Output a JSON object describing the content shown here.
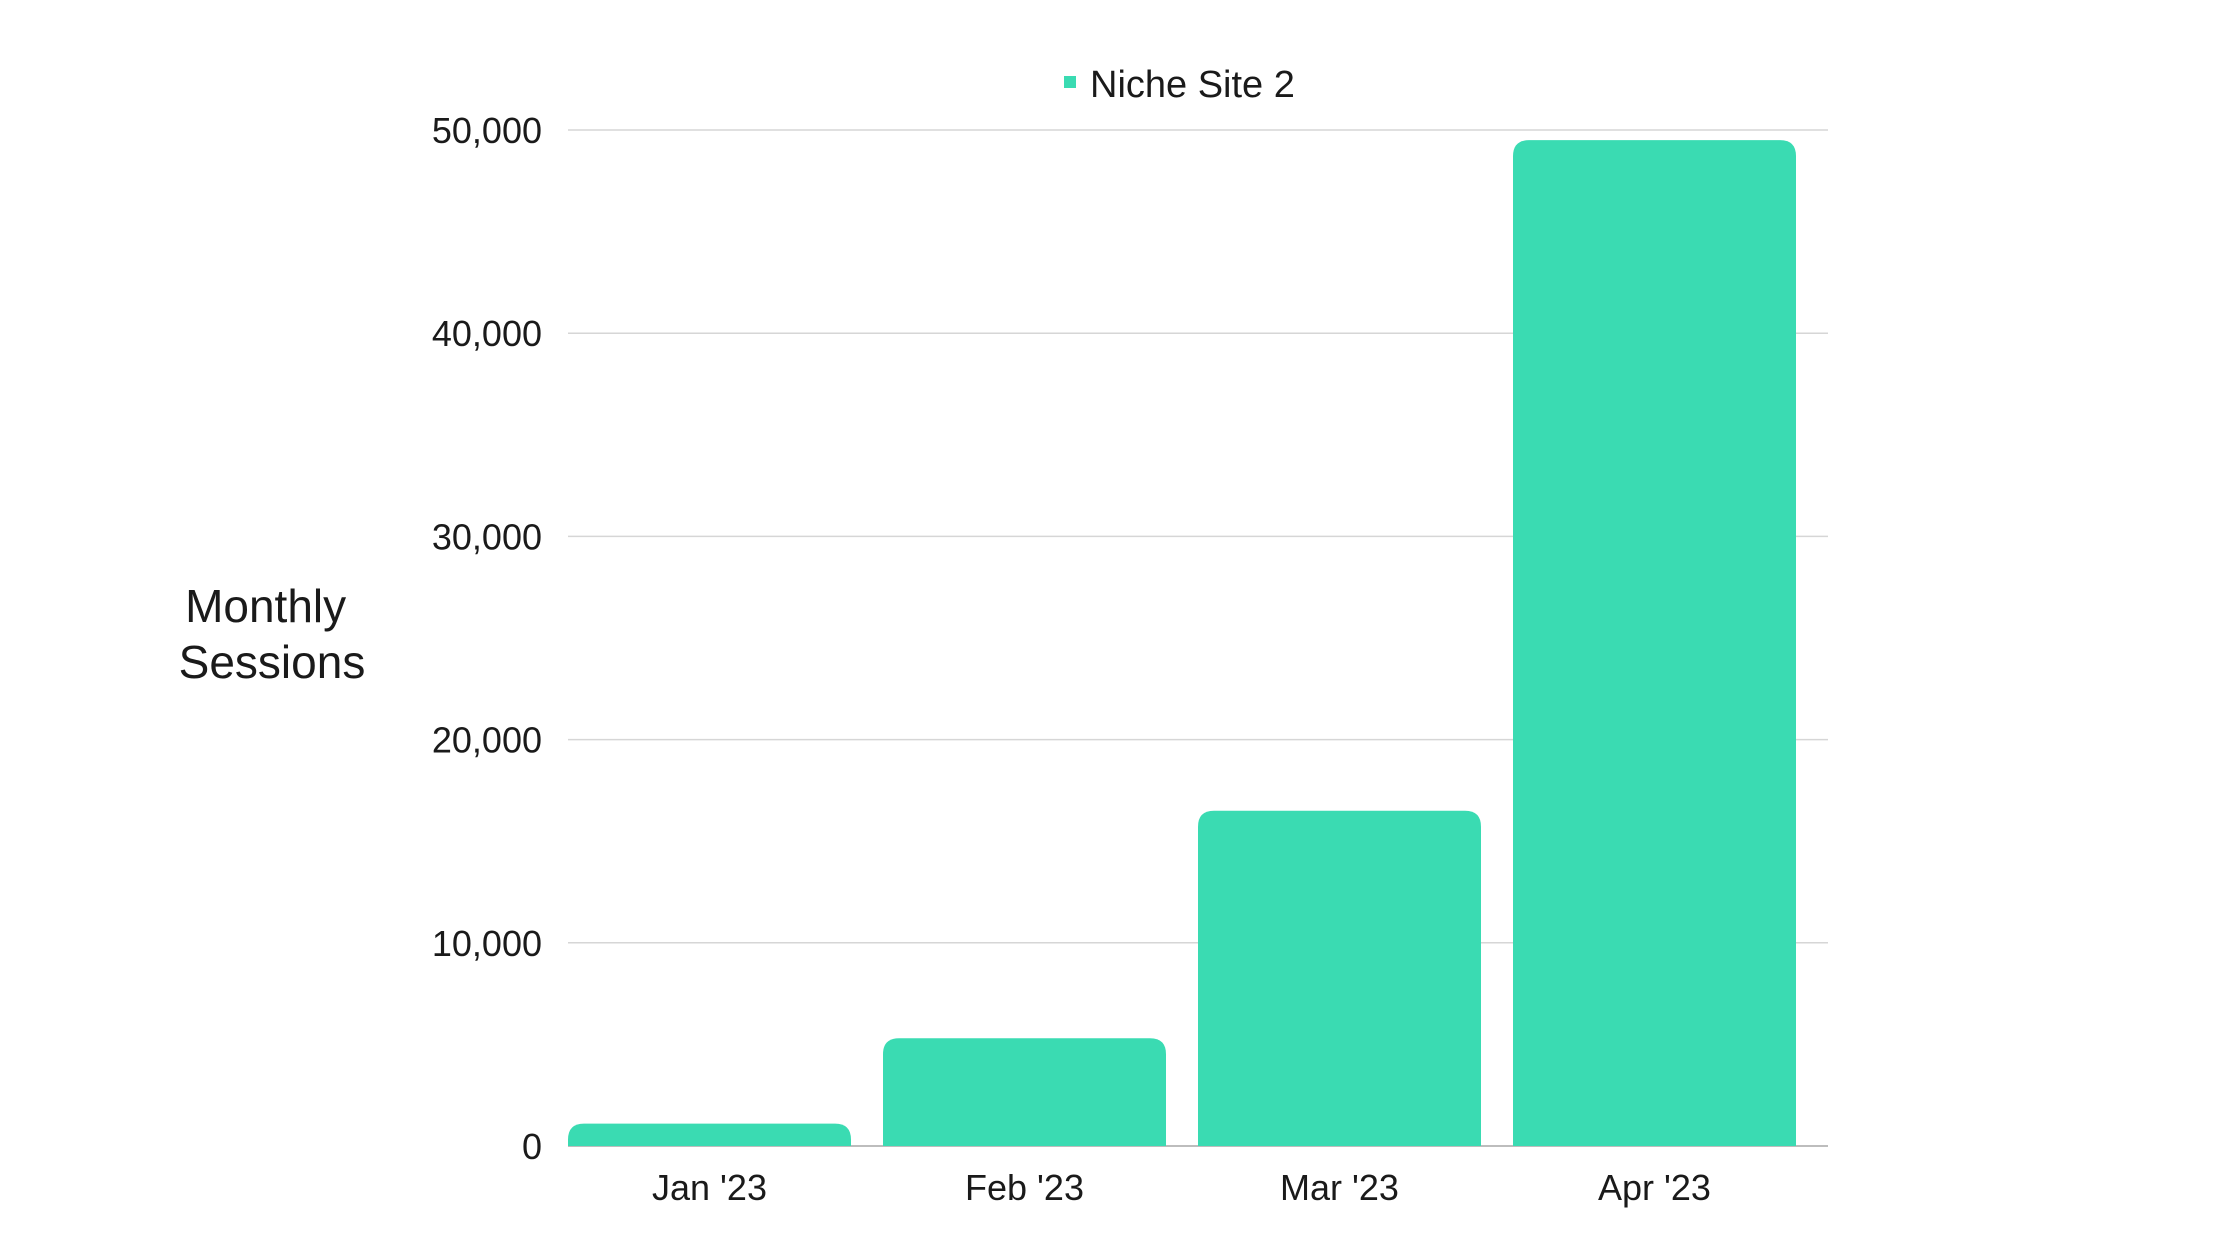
{
  "chart_data": {
    "type": "bar",
    "title": "",
    "xlabel": "",
    "ylabel": "Monthly Sessions",
    "ylabel_lines": [
      "Monthly",
      "Sessions"
    ],
    "categories": [
      "Jan '23",
      "Feb '23",
      "Mar '23",
      "Apr '23"
    ],
    "series": [
      {
        "name": "Niche Site 2",
        "color": "#3ADBB2",
        "values": [
          1100,
          5300,
          16500,
          49500
        ]
      }
    ],
    "ylim": [
      0,
      50000
    ],
    "yticks": [
      0,
      10000,
      20000,
      30000,
      40000,
      50000
    ],
    "ytick_labels": [
      "0",
      "10,000",
      "20,000",
      "30,000",
      "40,000",
      "50,000"
    ],
    "grid": true,
    "legend_position": "top-center"
  }
}
